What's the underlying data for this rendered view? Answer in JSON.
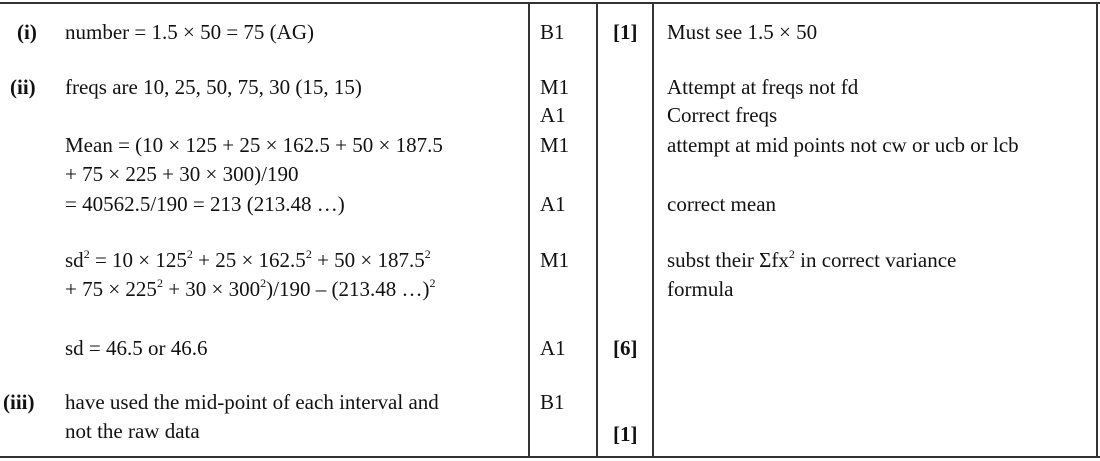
{
  "rows": {
    "i": {
      "label": "(i)",
      "answer": "number = 1.5 × 50 = 75 (AG)",
      "mark": "B1",
      "total": "[1]",
      "comment": "Must see 1.5 × 50"
    },
    "ii": {
      "label": "(ii)",
      "freqs": "freqs are 10, 25, 50, 75, 30 (15, 15)",
      "freqs_marks": [
        "M1",
        "A1"
      ],
      "freqs_comments": [
        "Attempt at freqs not fd",
        "Correct freqs"
      ],
      "mean_lines": [
        "Mean = (10 × 125 + 25 × 162.5 + 50 × 187.5",
        "+ 75 × 225 + 30 × 300)/190",
        "= 40562.5/190 = 213 (213.48 …)"
      ],
      "mean_marks": [
        "M1",
        "A1"
      ],
      "mean_comments": [
        "attempt at mid points not cw or ucb or lcb",
        "correct mean"
      ],
      "sd_line1": [
        "sd",
        "2",
        " = 10 × 125",
        "2",
        " + 25 × 162.5",
        "2",
        " + 50 × 187.5",
        "2"
      ],
      "sd_line2": [
        "+ 75 × 225",
        "2",
        " + 30 × 300",
        "2",
        ")/190 – (213.48 …)",
        "2"
      ],
      "sd_mark": "M1",
      "sd_comment": [
        "subst their Σfx",
        "2",
        " in correct variance"
      ],
      "sd_comment2": "formula",
      "sd_result": "sd = 46.5 or 46.6",
      "sd_result_mark": "A1",
      "total": "[6]"
    },
    "iii": {
      "label": "(iii)",
      "answer_lines": [
        "have used the mid-point of each interval and",
        "not the raw data"
      ],
      "mark": "B1",
      "total": "[1]"
    }
  }
}
